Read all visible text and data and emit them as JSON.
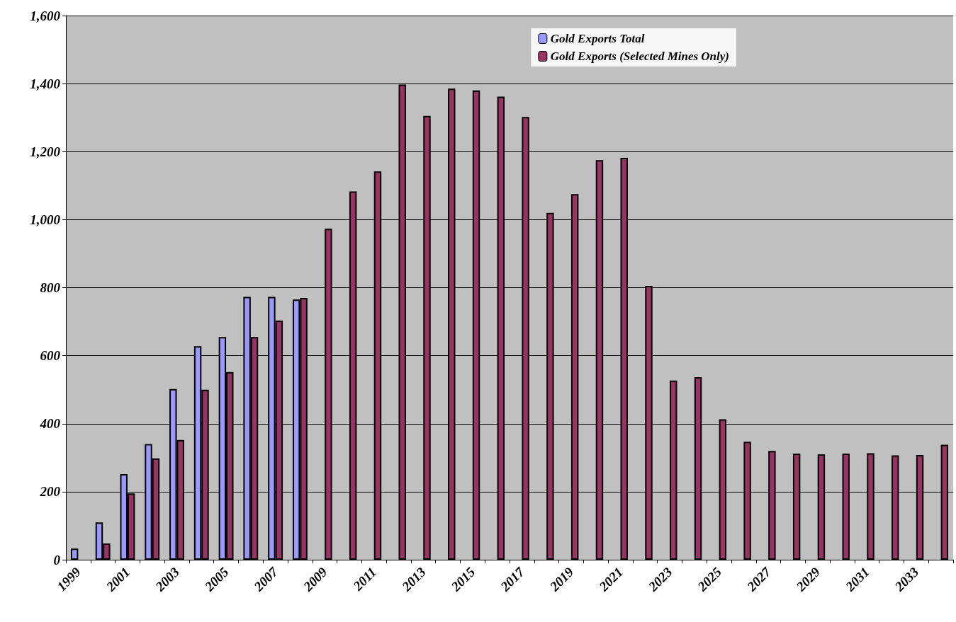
{
  "chart_data": {
    "type": "bar",
    "categories": [
      "1999",
      null,
      "2001",
      null,
      "2003",
      null,
      "2005",
      null,
      "2007",
      null,
      "2009",
      null,
      "2011",
      null,
      "2013",
      null,
      "2015",
      null,
      "2017",
      null,
      "2019",
      null,
      "2021",
      null,
      "2023",
      null,
      "2025",
      null,
      "2027",
      null,
      "2029",
      null,
      "2031",
      null,
      "2033",
      null
    ],
    "series": [
      {
        "name": "Gold Exports Total",
        "color": "#9999ff",
        "values": [
          33,
          110,
          252,
          340,
          502,
          628,
          655,
          773,
          773,
          765,
          null,
          null,
          null,
          null,
          null,
          null,
          null,
          null,
          null,
          null,
          null,
          null,
          null,
          null,
          null,
          null,
          null,
          null,
          null,
          null,
          null,
          null,
          null,
          null,
          null,
          null
        ]
      },
      {
        "name": "Gold Exports (Selected Mines Only)",
        "color": "#993366",
        "values": [
          null,
          48,
          195,
          298,
          352,
          500,
          552,
          655,
          703,
          770,
          973,
          1083,
          1142,
          1397,
          1305,
          1385,
          1380,
          1362,
          1302,
          1020,
          1075,
          1175,
          1182,
          805,
          527,
          537,
          413,
          347,
          320,
          312,
          310,
          312,
          313,
          307,
          308,
          338
        ]
      }
    ],
    "ylim": [
      0,
      1600
    ],
    "yticks": [
      0,
      200,
      400,
      600,
      800,
      {
        "value": 1000,
        "label": "1,000"
      },
      {
        "value": 1200,
        "label": "1,200"
      },
      {
        "value": 1400,
        "label": "1,400"
      },
      {
        "value": 1600,
        "label": "1,600"
      }
    ],
    "grid": "y",
    "legend": "top right"
  }
}
